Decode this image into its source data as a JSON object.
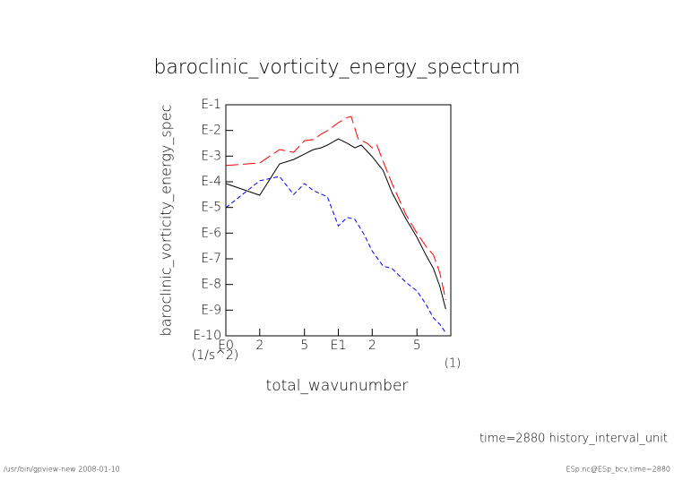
{
  "chart_data": {
    "type": "line",
    "title": "baroclinic_vorticity_energy_spectrum",
    "x_label": "total_wavunumber",
    "x_unit": "(1)",
    "y_label": "baroclinic_vorticity_energy_spec",
    "y_unit": "(1/s^2)",
    "x_log": true,
    "y_log": true,
    "xlim": [
      1,
      100
    ],
    "ylim": [
      1e-10,
      0.1
    ],
    "xticks": [
      {
        "value": 1,
        "label": "E0"
      },
      2,
      5,
      {
        "value": 10,
        "label": "E1"
      },
      {
        "value": 20,
        "label": "2"
      },
      {
        "value": 50,
        "label": "5"
      }
    ],
    "yticks": [
      {
        "value": 0.1,
        "label": "E-1"
      },
      {
        "value": 0.01,
        "label": "E-2"
      },
      {
        "value": 0.001,
        "label": "E-3"
      },
      {
        "value": 0.0001,
        "label": "E-4"
      },
      {
        "value": 1e-05,
        "label": "E-5"
      },
      {
        "value": 1e-06,
        "label": "E-6"
      },
      {
        "value": 1e-07,
        "label": "E-7"
      },
      {
        "value": 1e-08,
        "label": "E-8"
      },
      {
        "value": 1e-09,
        "label": "E-9"
      },
      {
        "value": 1e-10,
        "label": "E-10"
      }
    ],
    "series": [
      {
        "color": "#000000",
        "dash": "none",
        "x": [
          1,
          2,
          3,
          4,
          5,
          6,
          7,
          8,
          10,
          12,
          14,
          16,
          20,
          25,
          30,
          40,
          50,
          60,
          70,
          80,
          90
        ],
        "values": [
          8.5e-05,
          3e-05,
          0.0005,
          0.00074,
          0.0012,
          0.0018,
          0.0021,
          0.0027,
          0.0047,
          0.0032,
          0.0021,
          0.0027,
          0.00095,
          0.00028,
          3.8e-05,
          3.5e-06,
          6.9e-07,
          1.4e-07,
          4.2e-08,
          8.3e-09,
          1.1e-09
        ]
      },
      {
        "color": "#ff0000",
        "dash": "14 5",
        "x": [
          1,
          2,
          3,
          4,
          5,
          6,
          7,
          8,
          10,
          12,
          13,
          15,
          18,
          20,
          22,
          25,
          30,
          40,
          50,
          60,
          70,
          80,
          90
        ],
        "values": [
          0.00043,
          0.00054,
          0.0018,
          0.0014,
          0.004,
          0.0044,
          0.0071,
          0.0098,
          0.02,
          0.032,
          0.035,
          0.0047,
          0.0032,
          0.0021,
          0.0027,
          0.00063,
          8.5e-05,
          5.1e-06,
          1e-06,
          3.1e-07,
          1.4e-07,
          2.8e-08,
          2.5e-09
        ]
      },
      {
        "color": "#0000ff",
        "dash": "5 3",
        "x": [
          1,
          2,
          3,
          4,
          5,
          6,
          8,
          10,
          12,
          14,
          17,
          20,
          25,
          30,
          40,
          50,
          60,
          70,
          80,
          90
        ],
        "values": [
          9.8e-06,
          0.00011,
          0.00016,
          3.2e-05,
          8.5e-05,
          4.5e-05,
          2.6e-05,
          1.9e-06,
          4.1e-06,
          3.5e-06,
          8.7e-07,
          2e-07,
          5.2e-08,
          4.2e-08,
          1.2e-08,
          5.6e-09,
          1.7e-09,
          5e-10,
          2.8e-10,
          1.3e-10
        ]
      }
    ],
    "annotation": "time=2880 history_interval_unit",
    "footer_left": "/usr/bin/gpview-new  2008-01-10",
    "footer_right": "ESp.nc@ESp_bcv,time=2880"
  }
}
